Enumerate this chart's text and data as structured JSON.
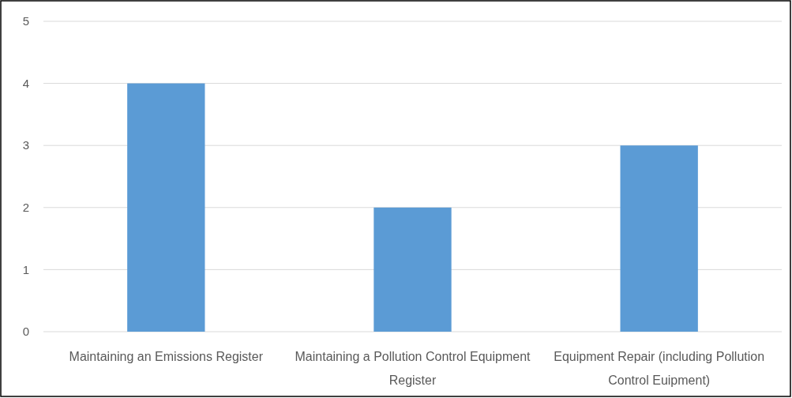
{
  "chart_data": {
    "type": "bar",
    "categories": [
      "Maintaining an Emissions Register",
      "Maintaining a Pollution Control Equipment Register",
      "Equipment Repair (including Pollution Control Euipment)"
    ],
    "values": [
      4,
      2,
      3
    ],
    "color": "#5b9bd5",
    "ylim": [
      0,
      5
    ],
    "yticks": [
      0,
      1,
      2,
      3,
      4,
      5
    ],
    "grid": "y"
  }
}
